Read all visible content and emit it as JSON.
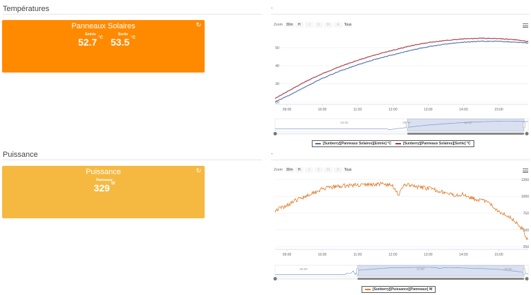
{
  "sections": {
    "temperatures": {
      "title": "Températures"
    },
    "power": {
      "title": "Puissance"
    }
  },
  "tiles": {
    "solar": {
      "title": "Panneaux Solaires",
      "color": "#FF8A00",
      "refresh_icon": "refresh-icon",
      "metrics": [
        {
          "label": "Entrée",
          "value": "52.7",
          "unit": "°C"
        },
        {
          "label": "Sortie",
          "value": "53.5",
          "unit": "°C"
        }
      ]
    },
    "power": {
      "title": "Puissance",
      "color": "#F5B942",
      "refresh_icon": "refresh-icon",
      "metrics": [
        {
          "label": "Panneaux",
          "value": "329",
          "unit": "W"
        }
      ]
    }
  },
  "charts": {
    "temperature": {
      "dash": "-",
      "toolbar": {
        "zoom_label": "Zoom",
        "buttons": [
          "30m",
          "H",
          "J",
          "S",
          "M",
          "A",
          "Tous"
        ],
        "disabled": [
          "J",
          "S",
          "M",
          "A"
        ]
      },
      "menu_icon": "hamburger-menu-icon",
      "navigator_labels": [
        "04:00",
        "08:00",
        "12:00"
      ],
      "legend": [
        {
          "name": "[Sunberry][Panneaux Solaires][Entrée] °C",
          "color": "#4A6FA5"
        },
        {
          "name": "[Sunberry][Panneaux Solaires][Sortie] °C",
          "color": "#A8323C"
        }
      ]
    },
    "power": {
      "dash": "-",
      "toolbar": {
        "zoom_label": "Zoom",
        "buttons": [
          "30m",
          "H",
          "J",
          "S",
          "M",
          "A",
          "Tous"
        ],
        "disabled": [
          "J",
          "S",
          "M",
          "A"
        ]
      },
      "menu_icon": "hamburger-menu-icon",
      "navigator_labels": [
        "06:00",
        "12:00",
        "18:00"
      ],
      "legend": [
        {
          "name": "[Sunberry][Puissance][Panneaux] W",
          "color": "#E07B2A"
        }
      ]
    }
  },
  "chart_data": [
    {
      "type": "line",
      "x": [
        "08:40",
        "09:00",
        "09:30",
        "10:00",
        "10:30",
        "11:00",
        "11:30",
        "12:00",
        "12:30",
        "13:00",
        "13:30",
        "14:00",
        "14:30",
        "15:00",
        "15:30",
        "15:50"
      ],
      "xticks": [
        "09:00",
        "10:00",
        "11:00",
        "12:00",
        "13:00",
        "14:00",
        "15:00"
      ],
      "yticks": [
        20,
        30,
        40,
        50
      ],
      "ylim": [
        19,
        58
      ],
      "series": [
        {
          "name": "[Sunberry][Panneaux Solaires][Entrée] °C",
          "color": "#4A6FA5",
          "values": [
            20,
            23,
            28,
            33,
            37,
            40.5,
            43.5,
            46,
            48.5,
            50.5,
            52,
            53,
            53.5,
            53.5,
            53,
            52.5
          ]
        },
        {
          "name": "[Sunberry][Panneaux Solaires][Sortie] °C",
          "color": "#A8323C",
          "values": [
            22,
            25.5,
            31,
            35.5,
            39.5,
            43,
            46,
            48.5,
            51,
            52.8,
            54,
            54.8,
            55.2,
            55,
            54.3,
            53.3
          ]
        }
      ]
    },
    {
      "type": "line",
      "x": [
        "08:40",
        "09:00",
        "09:20",
        "09:40",
        "10:00",
        "10:20",
        "10:40",
        "11:00",
        "11:20",
        "11:40",
        "12:00",
        "12:10",
        "12:20",
        "12:40",
        "13:00",
        "13:20",
        "13:40",
        "14:00",
        "14:20",
        "14:40",
        "15:00",
        "15:20",
        "15:40",
        "15:50"
      ],
      "xticks": [
        "09:00",
        "10:00",
        "11:00",
        "12:00",
        "13:00",
        "14:00",
        "15:00"
      ],
      "yticks": [
        250,
        500,
        750,
        1000,
        1250
      ],
      "ylim": [
        220,
        1270
      ],
      "series": [
        {
          "name": "[Sunberry][Puissance][Panneaux] W",
          "color": "#E07B2A",
          "values": [
            790,
            870,
            960,
            1040,
            1110,
            1140,
            1160,
            1170,
            1175,
            1185,
            1160,
            1020,
            1180,
            1140,
            1120,
            1080,
            1020,
            1030,
            960,
            920,
            780,
            690,
            520,
            330
          ]
        }
      ]
    }
  ]
}
